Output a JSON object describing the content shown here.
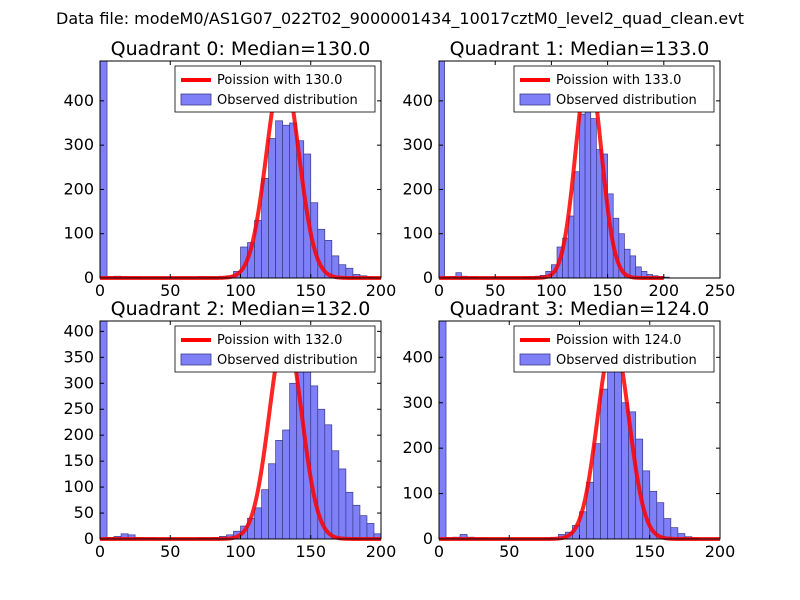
{
  "suptitle": "Data file: modeM0/AS1G07_022T02_9000001434_10017cztM0_level2_quad_clean.evt",
  "colors": {
    "bar_fill": "#7f7ff8",
    "bar_edge": "#3a3a88",
    "poisson_line": "#ff0000",
    "axes": "#000000"
  },
  "chart_data": [
    {
      "type": "bar",
      "title": "Quadrant 0: Median=130.0",
      "xlim": [
        0,
        200
      ],
      "ylim": [
        0,
        490
      ],
      "xticks": [
        0,
        50,
        100,
        150,
        200
      ],
      "yticks": [
        0,
        100,
        200,
        300,
        400
      ],
      "legend": [
        "Poission with 130.0",
        "Observed distribution"
      ],
      "legend_loc": "upper right",
      "bin_width": 5,
      "bins": [
        {
          "x": 0,
          "y": 490
        },
        {
          "x": 5,
          "y": 3
        },
        {
          "x": 10,
          "y": 4
        },
        {
          "x": 15,
          "y": 3
        },
        {
          "x": 20,
          "y": 2
        },
        {
          "x": 25,
          "y": 2
        },
        {
          "x": 30,
          "y": 1
        },
        {
          "x": 35,
          "y": 1
        },
        {
          "x": 40,
          "y": 1
        },
        {
          "x": 45,
          "y": 1
        },
        {
          "x": 50,
          "y": 1
        },
        {
          "x": 55,
          "y": 1
        },
        {
          "x": 60,
          "y": 1
        },
        {
          "x": 65,
          "y": 1
        },
        {
          "x": 70,
          "y": 3
        },
        {
          "x": 75,
          "y": 2
        },
        {
          "x": 80,
          "y": 2
        },
        {
          "x": 85,
          "y": 3
        },
        {
          "x": 90,
          "y": 5
        },
        {
          "x": 95,
          "y": 15
        },
        {
          "x": 100,
          "y": 70
        },
        {
          "x": 105,
          "y": 80
        },
        {
          "x": 110,
          "y": 130
        },
        {
          "x": 115,
          "y": 225
        },
        {
          "x": 120,
          "y": 315
        },
        {
          "x": 125,
          "y": 355
        },
        {
          "x": 130,
          "y": 345
        },
        {
          "x": 135,
          "y": 350
        },
        {
          "x": 140,
          "y": 310
        },
        {
          "x": 145,
          "y": 280
        },
        {
          "x": 150,
          "y": 170
        },
        {
          "x": 155,
          "y": 110
        },
        {
          "x": 160,
          "y": 85
        },
        {
          "x": 165,
          "y": 50
        },
        {
          "x": 170,
          "y": 30
        },
        {
          "x": 175,
          "y": 22
        },
        {
          "x": 180,
          "y": 8
        },
        {
          "x": 185,
          "y": 5
        },
        {
          "x": 190,
          "y": 2
        },
        {
          "x": 195,
          "y": 1
        }
      ],
      "poisson": {
        "lambda": 130.0,
        "peak": 470
      }
    },
    {
      "type": "bar",
      "title": "Quadrant 1: Median=133.0",
      "xlim": [
        0,
        250
      ],
      "ylim": [
        0,
        490
      ],
      "xticks": [
        0,
        50,
        100,
        150,
        200,
        250
      ],
      "yticks": [
        0,
        100,
        200,
        300,
        400
      ],
      "legend": [
        "Poission with 133.0",
        "Observed distribution"
      ],
      "legend_loc": "upper right",
      "bin_width": 5,
      "bins": [
        {
          "x": 0,
          "y": 490
        },
        {
          "x": 5,
          "y": 2
        },
        {
          "x": 10,
          "y": 3
        },
        {
          "x": 15,
          "y": 12
        },
        {
          "x": 20,
          "y": 4
        },
        {
          "x": 25,
          "y": 2
        },
        {
          "x": 30,
          "y": 2
        },
        {
          "x": 35,
          "y": 1
        },
        {
          "x": 40,
          "y": 1
        },
        {
          "x": 45,
          "y": 1
        },
        {
          "x": 50,
          "y": 1
        },
        {
          "x": 55,
          "y": 1
        },
        {
          "x": 60,
          "y": 1
        },
        {
          "x": 65,
          "y": 1
        },
        {
          "x": 70,
          "y": 1
        },
        {
          "x": 75,
          "y": 2
        },
        {
          "x": 80,
          "y": 3
        },
        {
          "x": 85,
          "y": 4
        },
        {
          "x": 90,
          "y": 6
        },
        {
          "x": 95,
          "y": 15
        },
        {
          "x": 100,
          "y": 30
        },
        {
          "x": 105,
          "y": 70
        },
        {
          "x": 110,
          "y": 90
        },
        {
          "x": 115,
          "y": 140
        },
        {
          "x": 120,
          "y": 240
        },
        {
          "x": 125,
          "y": 370
        },
        {
          "x": 130,
          "y": 390
        },
        {
          "x": 135,
          "y": 360
        },
        {
          "x": 140,
          "y": 290
        },
        {
          "x": 145,
          "y": 280
        },
        {
          "x": 150,
          "y": 190
        },
        {
          "x": 155,
          "y": 135
        },
        {
          "x": 160,
          "y": 100
        },
        {
          "x": 165,
          "y": 65
        },
        {
          "x": 170,
          "y": 50
        },
        {
          "x": 175,
          "y": 25
        },
        {
          "x": 180,
          "y": 15
        },
        {
          "x": 185,
          "y": 8
        },
        {
          "x": 190,
          "y": 5
        },
        {
          "x": 195,
          "y": 3
        },
        {
          "x": 200,
          "y": 2
        }
      ],
      "poisson": {
        "lambda": 133.0,
        "peak": 470
      }
    },
    {
      "type": "bar",
      "title": "Quadrant 2: Median=132.0",
      "xlim": [
        0,
        200
      ],
      "ylim": [
        0,
        420
      ],
      "xticks": [
        0,
        50,
        100,
        150,
        200
      ],
      "yticks": [
        0,
        50,
        100,
        150,
        200,
        250,
        300,
        350,
        400
      ],
      "legend": [
        "Poission with 132.0",
        "Observed distribution"
      ],
      "legend_loc": "upper right",
      "bin_width": 5,
      "bins": [
        {
          "x": 0,
          "y": 420
        },
        {
          "x": 5,
          "y": 3
        },
        {
          "x": 10,
          "y": 5
        },
        {
          "x": 15,
          "y": 10
        },
        {
          "x": 20,
          "y": 8
        },
        {
          "x": 25,
          "y": 3
        },
        {
          "x": 30,
          "y": 2
        },
        {
          "x": 35,
          "y": 2
        },
        {
          "x": 40,
          "y": 1
        },
        {
          "x": 45,
          "y": 1
        },
        {
          "x": 50,
          "y": 1
        },
        {
          "x": 55,
          "y": 1
        },
        {
          "x": 60,
          "y": 1
        },
        {
          "x": 65,
          "y": 1
        },
        {
          "x": 70,
          "y": 2
        },
        {
          "x": 75,
          "y": 2
        },
        {
          "x": 80,
          "y": 3
        },
        {
          "x": 85,
          "y": 5
        },
        {
          "x": 90,
          "y": 8
        },
        {
          "x": 95,
          "y": 15
        },
        {
          "x": 100,
          "y": 25
        },
        {
          "x": 105,
          "y": 40
        },
        {
          "x": 110,
          "y": 60
        },
        {
          "x": 115,
          "y": 95
        },
        {
          "x": 120,
          "y": 145
        },
        {
          "x": 125,
          "y": 190
        },
        {
          "x": 130,
          "y": 210
        },
        {
          "x": 135,
          "y": 300
        },
        {
          "x": 140,
          "y": 360
        },
        {
          "x": 145,
          "y": 380
        },
        {
          "x": 150,
          "y": 295
        },
        {
          "x": 155,
          "y": 250
        },
        {
          "x": 160,
          "y": 220
        },
        {
          "x": 165,
          "y": 170
        },
        {
          "x": 170,
          "y": 135
        },
        {
          "x": 175,
          "y": 90
        },
        {
          "x": 180,
          "y": 65
        },
        {
          "x": 185,
          "y": 45
        },
        {
          "x": 190,
          "y": 30
        },
        {
          "x": 195,
          "y": 10
        }
      ],
      "poisson": {
        "lambda": 132.0,
        "peak": 400
      }
    },
    {
      "type": "bar",
      "title": "Quadrant 3: Median=124.0",
      "xlim": [
        0,
        200
      ],
      "ylim": [
        0,
        480
      ],
      "xticks": [
        0,
        50,
        100,
        150,
        200
      ],
      "yticks": [
        0,
        100,
        200,
        300,
        400
      ],
      "legend": [
        "Poission with 124.0",
        "Observed distribution"
      ],
      "legend_loc": "upper right",
      "bin_width": 5,
      "bins": [
        {
          "x": 0,
          "y": 480
        },
        {
          "x": 5,
          "y": 3
        },
        {
          "x": 10,
          "y": 4
        },
        {
          "x": 15,
          "y": 10
        },
        {
          "x": 20,
          "y": 4
        },
        {
          "x": 25,
          "y": 2
        },
        {
          "x": 30,
          "y": 2
        },
        {
          "x": 35,
          "y": 1
        },
        {
          "x": 40,
          "y": 1
        },
        {
          "x": 45,
          "y": 1
        },
        {
          "x": 50,
          "y": 1
        },
        {
          "x": 55,
          "y": 1
        },
        {
          "x": 60,
          "y": 1
        },
        {
          "x": 65,
          "y": 1
        },
        {
          "x": 70,
          "y": 1
        },
        {
          "x": 75,
          "y": 2
        },
        {
          "x": 80,
          "y": 3
        },
        {
          "x": 85,
          "y": 10
        },
        {
          "x": 90,
          "y": 15
        },
        {
          "x": 95,
          "y": 30
        },
        {
          "x": 100,
          "y": 60
        },
        {
          "x": 105,
          "y": 125
        },
        {
          "x": 110,
          "y": 210
        },
        {
          "x": 115,
          "y": 330
        },
        {
          "x": 120,
          "y": 425
        },
        {
          "x": 125,
          "y": 410
        },
        {
          "x": 130,
          "y": 300
        },
        {
          "x": 135,
          "y": 280
        },
        {
          "x": 140,
          "y": 220
        },
        {
          "x": 145,
          "y": 150
        },
        {
          "x": 150,
          "y": 105
        },
        {
          "x": 155,
          "y": 80
        },
        {
          "x": 160,
          "y": 45
        },
        {
          "x": 165,
          "y": 25
        },
        {
          "x": 170,
          "y": 12
        },
        {
          "x": 175,
          "y": 5
        },
        {
          "x": 180,
          "y": 2
        }
      ],
      "poisson": {
        "lambda": 124.0,
        "peak": 440
      }
    }
  ]
}
